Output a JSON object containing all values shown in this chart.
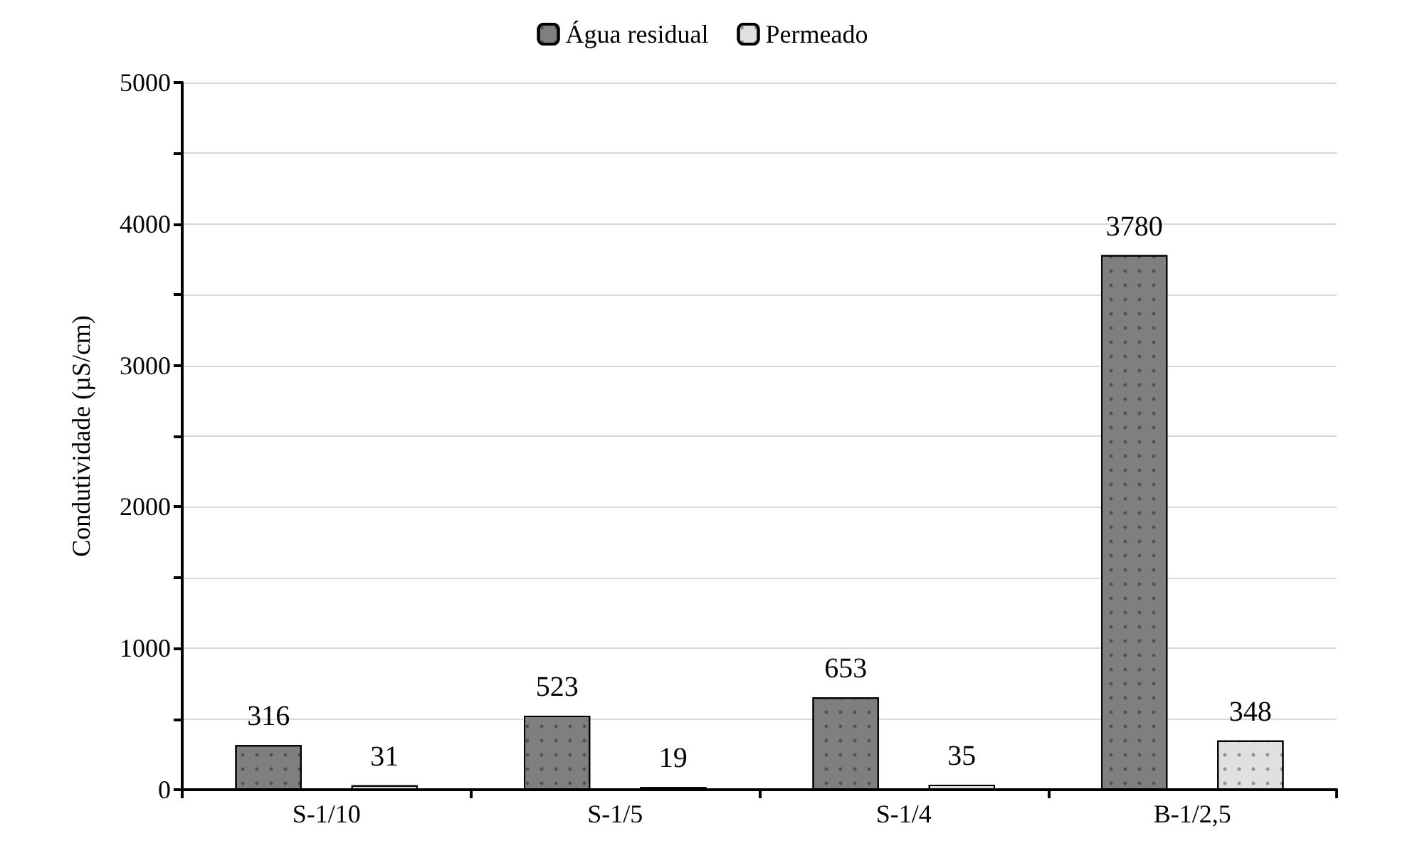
{
  "chart_data": {
    "type": "bar",
    "ylabel": "Condutividade (µS/cm)",
    "categories": [
      "S-1/10",
      "S-1/5",
      "S-1/4",
      "B-1/2,5"
    ],
    "series": [
      {
        "name": "Água residual",
        "color": "#7f7f7f",
        "values": [
          316,
          523,
          653,
          3780
        ]
      },
      {
        "name": "Permeado",
        "color": "#e0e0e0",
        "values": [
          31,
          19,
          35,
          348
        ]
      }
    ],
    "ylim": [
      0,
      5000
    ],
    "yticks": [
      0,
      {
        "value": 500,
        "label": null
      },
      1000,
      {
        "value": 1500,
        "label": null
      },
      2000,
      {
        "value": 2500,
        "label": null
      },
      3000,
      {
        "value": 3500,
        "label": null
      },
      4000,
      {
        "value": 4500,
        "label": null
      },
      5000
    ],
    "grid": "y",
    "legend": "top",
    "data_labels": true
  }
}
